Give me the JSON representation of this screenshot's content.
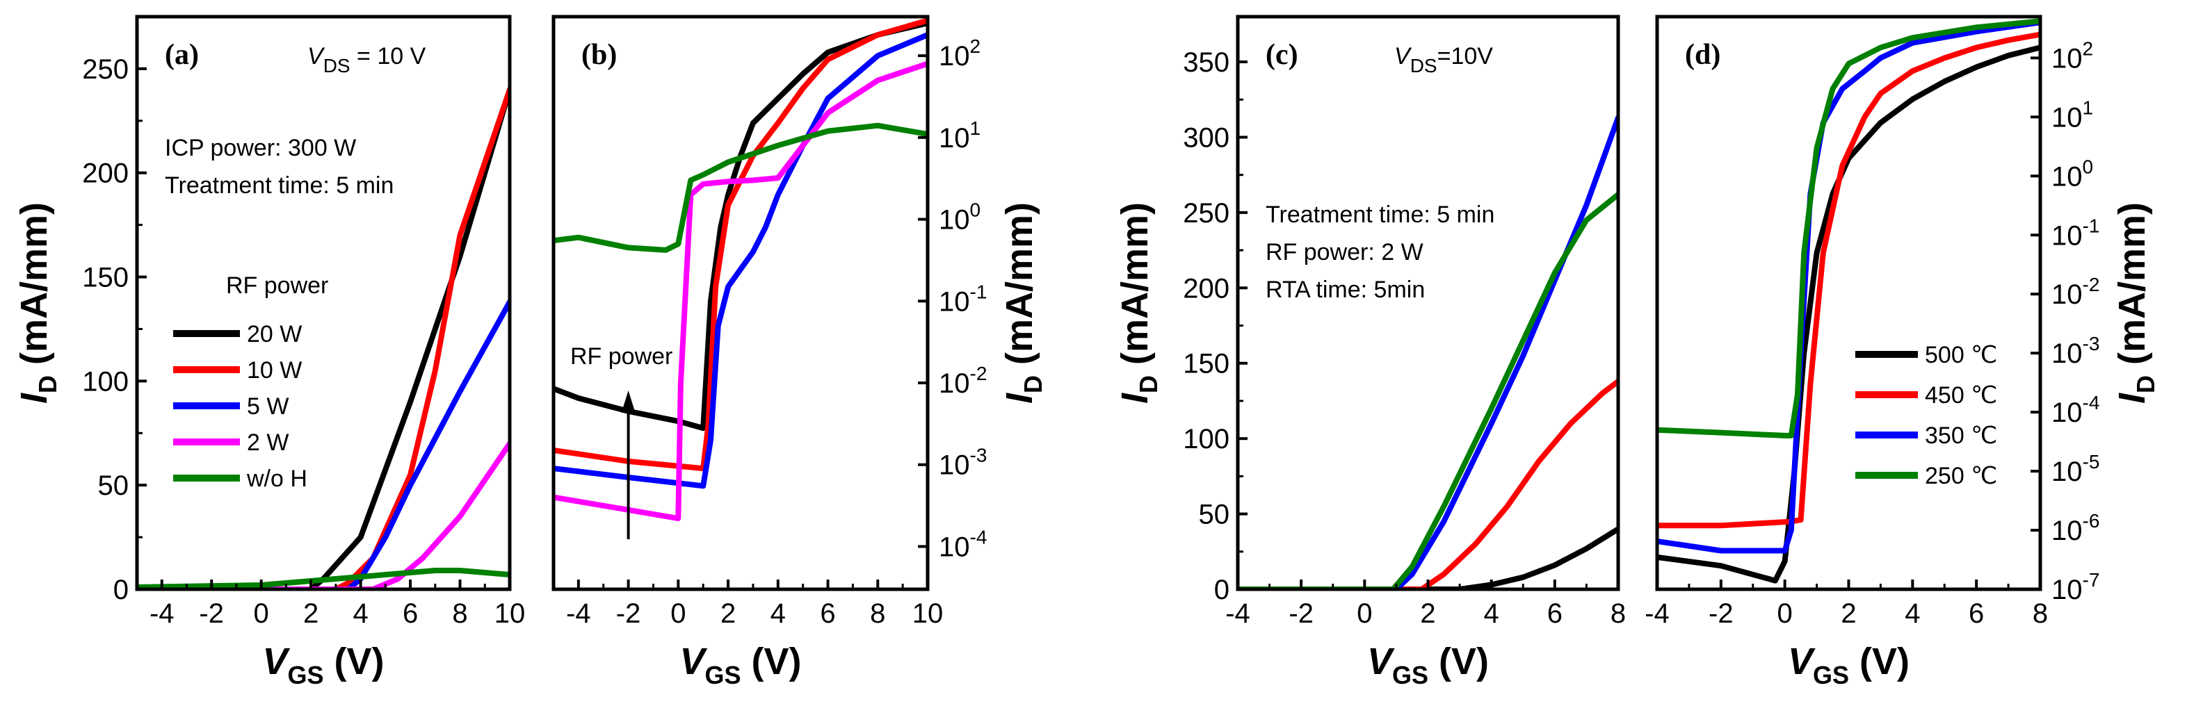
{
  "chart_data": [
    {
      "id": "a",
      "type": "line",
      "panel_label": "(a)",
      "title_prefix": "V",
      "title_sub": "DS",
      "title_suffix": " = 10 V",
      "xlabel_main": "V",
      "xlabel_sub": "GS",
      "xlabel_unit": " (V)",
      "ylabel_main": "I",
      "ylabel_sub": "D",
      "ylabel_unit": " (mA/mm)",
      "xlim": [
        -5,
        10
      ],
      "ylim": [
        0,
        275
      ],
      "yscale": "linear",
      "xticks": [
        -4,
        -2,
        0,
        2,
        4,
        6,
        8,
        10
      ],
      "yticks": [
        0,
        50,
        100,
        150,
        200,
        250
      ],
      "notes": [
        "ICP power: 300 W",
        "Treatment time: 5 min"
      ],
      "legend_title": "RF power",
      "series": [
        {
          "name": "20 W",
          "color": "#000000",
          "x": [
            -5,
            2,
            2.5,
            4,
            6,
            8,
            10
          ],
          "y": [
            0,
            0,
            5,
            25,
            90,
            160,
            240
          ]
        },
        {
          "name": "10 W",
          "color": "#ff0000",
          "x": [
            -5,
            3,
            3.5,
            4.5,
            6,
            7,
            8,
            10
          ],
          "y": [
            0,
            0,
            3,
            15,
            55,
            105,
            170,
            240
          ]
        },
        {
          "name": "5  W",
          "color": "#0000ff",
          "x": [
            -5,
            3.5,
            4,
            5,
            6,
            8,
            10
          ],
          "y": [
            0,
            0,
            5,
            25,
            50,
            95,
            138
          ]
        },
        {
          "name": "2  W",
          "color": "#ff00ff",
          "x": [
            -5,
            4.5,
            5.5,
            6.5,
            8,
            10
          ],
          "y": [
            0,
            0,
            5,
            15,
            35,
            70
          ]
        },
        {
          "name": "w/o H",
          "color": "#008000",
          "x": [
            -5,
            0,
            2,
            4,
            6,
            7,
            8,
            10
          ],
          "y": [
            1,
            2,
            4,
            6,
            8,
            9,
            9,
            7
          ]
        }
      ]
    },
    {
      "id": "b",
      "type": "line",
      "panel_label": "(b)",
      "xlabel_main": "V",
      "xlabel_sub": "GS",
      "xlabel_unit": " (V)",
      "ylabel_main": "I",
      "ylabel_sub": "D",
      "ylabel_unit": " (mA/mm)",
      "xlim": [
        -5,
        10
      ],
      "ylim": [
        3e-05,
        300
      ],
      "yscale": "log",
      "xticks": [
        -4,
        -2,
        0,
        2,
        4,
        6,
        8,
        10
      ],
      "ytick_values": [
        0.0001,
        0.001,
        0.01,
        0.1,
        1,
        10,
        100
      ],
      "ytick_labels": [
        [
          "10",
          "-4"
        ],
        [
          "10",
          "-3"
        ],
        [
          "10",
          "-2"
        ],
        [
          "10",
          "-1"
        ],
        [
          "10",
          "0"
        ],
        [
          "10",
          "1"
        ],
        [
          "10",
          "2"
        ]
      ],
      "annotation": "RF power",
      "series": [
        {
          "name": "20 W",
          "color": "#000000",
          "x": [
            -5,
            -4,
            -2,
            0,
            1,
            1.3,
            1.7,
            2,
            2.5,
            3,
            4,
            5,
            6,
            8,
            10
          ],
          "y": [
            0.0085,
            0.0065,
            0.0045,
            0.0034,
            0.0028,
            0.1,
            0.8,
            2,
            6,
            15,
            30,
            60,
            110,
            180,
            250
          ]
        },
        {
          "name": "10 W",
          "color": "#ff0000",
          "x": [
            -5,
            -2,
            1,
            1.2,
            1.5,
            2,
            2.5,
            3,
            4,
            5,
            6,
            8,
            10
          ],
          "y": [
            0.0015,
            0.0011,
            0.0009,
            0.003,
            0.15,
            1.5,
            3,
            6,
            15,
            40,
            90,
            180,
            270
          ]
        },
        {
          "name": "5  W",
          "color": "#0000ff",
          "x": [
            -5,
            -2,
            1,
            1.3,
            1.6,
            2,
            3,
            3.5,
            4,
            5,
            6,
            8,
            10
          ],
          "y": [
            0.0009,
            0.0007,
            0.00055,
            0.002,
            0.05,
            0.15,
            0.4,
            0.8,
            2,
            8,
            30,
            100,
            180
          ]
        },
        {
          "name": "2  W",
          "color": "#ff00ff",
          "x": [
            -5,
            -2,
            0,
            0.1,
            0.5,
            1,
            2,
            3,
            4,
            5,
            6,
            8,
            10
          ],
          "y": [
            0.0004,
            0.00028,
            0.00022,
            0.01,
            2,
            2.7,
            2.9,
            3,
            3.2,
            8,
            20,
            50,
            80
          ]
        },
        {
          "name": "w/o H",
          "color": "#008000",
          "x": [
            -5,
            -4,
            -2,
            -0.5,
            0,
            0.5,
            1,
            2,
            4,
            6,
            8,
            10
          ],
          "y": [
            0.55,
            0.6,
            0.45,
            0.42,
            0.5,
            3,
            3.5,
            5,
            8,
            12,
            14,
            11
          ]
        }
      ]
    },
    {
      "id": "c",
      "type": "line",
      "panel_label": "(c)",
      "title_prefix": "V",
      "title_sub": "DS",
      "title_suffix": "=10V",
      "xlabel_main": "V",
      "xlabel_sub": "GS",
      "xlabel_unit": " (V)",
      "ylabel_main": "I",
      "ylabel_sub": "D",
      "ylabel_unit": " (mA/mm)",
      "xlim": [
        -4,
        8
      ],
      "ylim": [
        0,
        380
      ],
      "yscale": "linear",
      "xticks": [
        -4,
        -2,
        0,
        2,
        4,
        6,
        8
      ],
      "yticks": [
        0,
        50,
        100,
        150,
        200,
        250,
        300,
        350
      ],
      "notes": [
        "Treatment time: 5 min",
        "RF power: 2 W",
        "RTA time: 5min"
      ],
      "series": [
        {
          "name": "500 ℃",
          "color": "#000000",
          "x": [
            -4,
            3,
            4,
            5,
            6,
            7,
            8
          ],
          "y": [
            0,
            0,
            3,
            8,
            16,
            27,
            40
          ]
        },
        {
          "name": "450 ℃",
          "color": "#ff0000",
          "x": [
            -4,
            1.8,
            2.5,
            3.5,
            4.5,
            5.5,
            6.5,
            7.5,
            8
          ],
          "y": [
            0,
            0,
            10,
            30,
            55,
            85,
            110,
            130,
            138
          ]
        },
        {
          "name": "350 ℃",
          "color": "#0000ff",
          "x": [
            -4,
            1,
            1.5,
            2.5,
            4,
            5,
            6,
            7,
            8
          ],
          "y": [
            0,
            0,
            10,
            45,
            110,
            155,
            205,
            255,
            313
          ]
        },
        {
          "name": "250 ℃",
          "color": "#008000",
          "x": [
            -4,
            0.9,
            1.5,
            2.5,
            4,
            5,
            6,
            7,
            8
          ],
          "y": [
            0,
            0,
            15,
            55,
            120,
            165,
            210,
            245,
            262
          ]
        }
      ]
    },
    {
      "id": "d",
      "type": "line",
      "panel_label": "(d)",
      "xlabel_main": "V",
      "xlabel_sub": "GS",
      "xlabel_unit": " (V)",
      "ylabel_main": "I",
      "ylabel_sub": "D",
      "ylabel_unit": " (mA/mm)",
      "xlim": [
        -4,
        8
      ],
      "ylim": [
        1e-07,
        500
      ],
      "yscale": "log",
      "xticks": [
        -4,
        -2,
        0,
        2,
        4,
        6,
        8
      ],
      "ytick_values": [
        1e-07,
        1e-06,
        1e-05,
        0.0001,
        0.001,
        0.01,
        0.1,
        1,
        10,
        100
      ],
      "ytick_labels": [
        [
          "10",
          "-7"
        ],
        [
          "10",
          "-6"
        ],
        [
          "10",
          "-5"
        ],
        [
          "10",
          "-4"
        ],
        [
          "10",
          "-3"
        ],
        [
          "10",
          "-2"
        ],
        [
          "10",
          "-1"
        ],
        [
          "10",
          "0"
        ],
        [
          "10",
          "1"
        ],
        [
          "10",
          "2"
        ]
      ],
      "series": [
        {
          "name": "500 ℃",
          "color": "#000000",
          "x": [
            -4,
            -2,
            -0.3,
            0,
            0.3,
            0.6,
            1,
            1.5,
            2,
            3,
            4,
            5,
            6,
            7,
            8
          ],
          "y": [
            3.5e-07,
            2.5e-07,
            1.4e-07,
            3e-07,
            1e-05,
            0.001,
            0.05,
            0.5,
            2,
            8,
            20,
            40,
            70,
            110,
            150
          ]
        },
        {
          "name": "450 ℃",
          "color": "#ff0000",
          "x": [
            -4,
            -2,
            0.2,
            0.5,
            0.8,
            1.2,
            1.8,
            2.5,
            3,
            4,
            5,
            6,
            7,
            8
          ],
          "y": [
            1.2e-06,
            1.2e-06,
            1.4e-06,
            1.5e-06,
            0.0003,
            0.05,
            1.5,
            10,
            25,
            60,
            100,
            150,
            200,
            250
          ]
        },
        {
          "name": "350 ℃",
          "color": "#0000ff",
          "x": [
            -4,
            -2,
            0,
            0.2,
            0.5,
            0.8,
            1.2,
            1.8,
            2.5,
            3,
            4,
            6,
            8
          ],
          "y": [
            6.5e-07,
            4.5e-07,
            4.5e-07,
            1e-06,
            0.001,
            0.5,
            8,
            30,
            60,
            100,
            180,
            280,
            400
          ]
        },
        {
          "name": "250 ℃",
          "color": "#008000",
          "x": [
            -4,
            -2,
            0,
            0.2,
            0.4,
            0.6,
            1,
            1.5,
            2,
            3,
            4,
            6,
            8
          ],
          "y": [
            5e-05,
            4.5e-05,
            4e-05,
            4e-05,
            0.0002,
            0.05,
            3,
            30,
            80,
            150,
            220,
            330,
            420
          ]
        }
      ]
    }
  ]
}
